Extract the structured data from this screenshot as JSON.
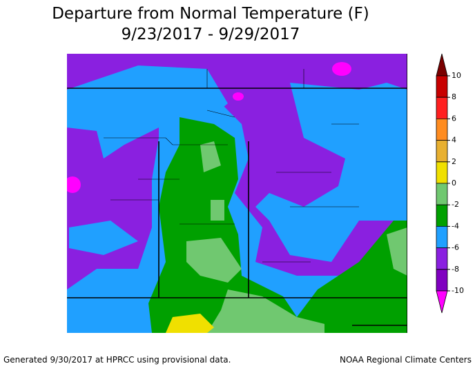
{
  "header": {
    "title": "Departure from Normal Temperature (F)",
    "subtitle": "9/23/2017 - 9/29/2017"
  },
  "legend": {
    "ticks": [
      10,
      8,
      6,
      4,
      2,
      0,
      -2,
      -4,
      -6,
      -8,
      -10
    ],
    "colors": [
      "#7a0000",
      "#c80000",
      "#ff2020",
      "#ff8c20",
      "#e8b030",
      "#f0e000",
      "#70c870",
      "#00a000",
      "#20a0ff",
      "#8a20e0",
      "#8000c0",
      "#ff00ff"
    ]
  },
  "footer": {
    "left": "Generated 9/30/2017 at HPRCC using provisional data.",
    "right": "NOAA Regional Climate Centers"
  }
}
